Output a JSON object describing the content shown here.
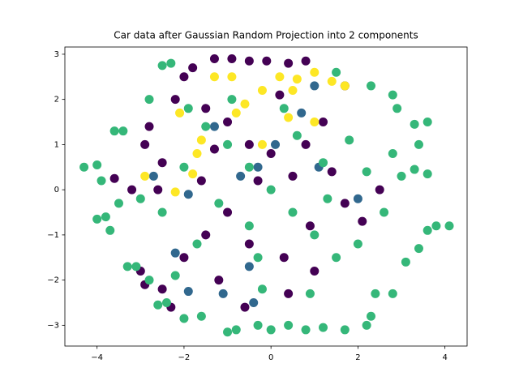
{
  "chart_data": {
    "type": "scatter",
    "title": "Car data after Gaussian Random Projection into 2 components",
    "xlim": [
      -4.74,
      4.51
    ],
    "ylim": [
      -3.46,
      3.16
    ],
    "xticks": [
      {
        "value": -4,
        "label": "−4"
      },
      {
        "value": -2,
        "label": "−2"
      },
      0,
      2,
      4
    ],
    "yticks": [
      {
        "value": -3,
        "label": "−3"
      },
      {
        "value": -2,
        "label": "−2"
      },
      {
        "value": -1,
        "label": "−1"
      },
      0,
      1,
      2,
      3
    ],
    "grid": false,
    "series": [
      {
        "color": "#440154",
        "x": [
          -2.6,
          -3.2,
          -3.6,
          -3.0,
          -2.9,
          -2.5,
          -2.3,
          -1.3,
          -0.9,
          -0.5,
          -0.1,
          0.4,
          0.8,
          -2.0,
          -1.8,
          -2.2,
          -2.8,
          -2.9,
          -2.5,
          -1.5,
          -1.0,
          -0.5,
          0.0,
          0.5,
          -1.0,
          -0.5,
          0.3,
          0.9,
          1.4,
          1.7,
          2.1,
          2.5,
          1.2,
          1.7,
          -0.3,
          -1.6,
          -2.0,
          -1.2,
          -0.6,
          0.4,
          1.0,
          -1.5,
          0.8,
          0.2,
          -1.3
        ],
        "values": [
          0.0,
          0.0,
          0.25,
          -1.8,
          -2.1,
          -2.2,
          -2.6,
          2.9,
          2.9,
          2.85,
          2.85,
          2.8,
          2.85,
          2.5,
          2.7,
          2.0,
          1.4,
          1.0,
          0.6,
          1.8,
          1.5,
          1.0,
          0.8,
          0.3,
          -0.5,
          -1.2,
          -1.5,
          -0.8,
          0.4,
          -0.3,
          -0.7,
          0.0,
          1.5,
          2.3,
          0.2,
          0.2,
          -1.5,
          -2.0,
          -2.6,
          -2.3,
          -1.8,
          -1.0,
          1.0,
          2.1,
          0.9
        ]
      },
      {
        "color": "#31688e",
        "x": [
          -2.7,
          -1.9,
          -2.2,
          -1.9,
          -1.1,
          -0.4,
          -0.7,
          0.1,
          -0.3,
          0.7,
          1.0,
          -1.3,
          2.0,
          1.1,
          -0.5
        ],
        "values": [
          0.3,
          -0.1,
          -1.4,
          -2.25,
          -2.3,
          -2.5,
          0.3,
          1.0,
          0.5,
          1.7,
          2.3,
          1.4,
          -0.2,
          0.5,
          -1.7
        ]
      },
      {
        "color": "#35b779",
        "x": [
          -4.3,
          -4.0,
          -4.0,
          -3.8,
          -3.7,
          -3.9,
          -3.6,
          -3.4,
          -3.5,
          -3.3,
          -3.1,
          -2.8,
          -2.6,
          -2.4,
          -2.8,
          -2.5,
          -2.3,
          -2.0,
          -1.6,
          -1.0,
          -0.8,
          -0.3,
          0.0,
          0.4,
          0.8,
          1.2,
          1.7,
          2.2,
          2.3,
          2.4,
          2.8,
          3.1,
          3.4,
          3.6,
          4.1,
          3.8,
          3.0,
          3.3,
          3.6,
          2.8,
          3.4,
          3.6,
          3.3,
          2.9,
          2.8,
          2.3,
          1.5,
          -1.9,
          -1.5,
          -1.0,
          -0.5,
          0.0,
          0.5,
          1.0,
          1.5,
          -0.5,
          -1.2,
          1.2,
          0.6,
          -2.0,
          -2.5,
          -1.7,
          -0.2,
          0.9,
          2.0,
          2.2,
          1.8,
          -0.9,
          0.3,
          -3.0,
          -2.2,
          1.3,
          -0.3,
          2.6
        ],
        "values": [
          0.5,
          0.55,
          -0.65,
          -0.6,
          -0.9,
          0.2,
          1.3,
          1.3,
          -0.3,
          -1.7,
          -1.7,
          -2.0,
          -2.55,
          -2.5,
          2.0,
          2.75,
          2.8,
          -2.85,
          -2.8,
          -3.15,
          -3.1,
          -3.0,
          -3.1,
          -3.0,
          -3.1,
          -3.05,
          -3.1,
          -3.0,
          -2.8,
          -2.3,
          -2.3,
          -1.6,
          -1.3,
          -0.9,
          -0.8,
          -0.8,
          0.3,
          0.45,
          0.35,
          0.8,
          1.0,
          1.5,
          1.45,
          1.8,
          2.1,
          2.3,
          2.6,
          1.8,
          1.4,
          1.0,
          0.5,
          0.0,
          -0.5,
          -1.0,
          -1.5,
          -0.8,
          -0.3,
          0.6,
          1.2,
          0.5,
          -0.5,
          -1.2,
          -2.2,
          -2.3,
          -1.2,
          0.4,
          1.1,
          2.0,
          1.8,
          -0.2,
          -1.9,
          -0.2,
          -1.5,
          -0.5
        ]
      },
      {
        "color": "#fde725",
        "x": [
          -2.2,
          -2.9,
          -1.7,
          -1.6,
          -1.3,
          -0.6,
          -0.2,
          0.2,
          0.6,
          1.0,
          1.7,
          1.4,
          -0.9,
          -2.1,
          0.4,
          1.0,
          -0.8,
          0.5,
          -1.8,
          -0.2
        ],
        "values": [
          -0.05,
          0.3,
          0.8,
          1.1,
          2.5,
          1.9,
          2.2,
          2.5,
          2.45,
          2.6,
          2.3,
          2.4,
          2.5,
          1.7,
          1.6,
          1.5,
          1.7,
          2.2,
          0.35,
          1.0
        ]
      }
    ]
  }
}
